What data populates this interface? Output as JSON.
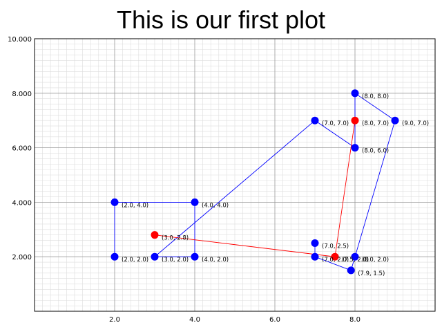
{
  "chart_data": {
    "type": "scatter",
    "title": "This is our first plot",
    "xlabel": "",
    "ylabel": "",
    "xlim": [
      0,
      10
    ],
    "ylim": [
      0,
      10
    ],
    "grid": true,
    "x_ticks": [
      {
        "value": 2,
        "label": "2.0"
      },
      {
        "value": 4,
        "label": "4.0"
      },
      {
        "value": 6,
        "label": "6.0"
      },
      {
        "value": 8,
        "label": "8.0"
      }
    ],
    "y_ticks": [
      {
        "value": 2,
        "label": "2.000"
      },
      {
        "value": 4,
        "label": "4.000"
      },
      {
        "value": 6,
        "label": "6.000"
      },
      {
        "value": 8,
        "label": "8.000"
      },
      {
        "value": 10,
        "label": "10.000"
      }
    ],
    "series": [
      {
        "color": "#0000ff",
        "points": [
          {
            "x": 2,
            "y": 2,
            "label": "(2.0, 2.0)"
          },
          {
            "x": 2,
            "y": 4,
            "label": "(2.0, 4.0)"
          },
          {
            "x": 4,
            "y": 4,
            "label": "(4.0, 4.0)"
          },
          {
            "x": 4,
            "y": 2,
            "label": "(4.0, 2.0)"
          },
          {
            "x": 3,
            "y": 2,
            "label": "(3.0, 2.0)"
          },
          {
            "x": 7,
            "y": 7,
            "label": "(7.0, 7.0)"
          },
          {
            "x": 8,
            "y": 6,
            "label": "(8.0, 6.0)"
          },
          {
            "x": 8,
            "y": 8,
            "label": "(8.0, 8.0)"
          },
          {
            "x": 9,
            "y": 7,
            "label": "(9.0, 7.0)"
          },
          {
            "x": 8,
            "y": 2,
            "label": "(8.0, 2.0)"
          },
          {
            "x": 7.9,
            "y": 1.5,
            "label": "(7.9, 1.5)"
          },
          {
            "x": 7,
            "y": 2,
            "label": "(7.0, 2.0)"
          },
          {
            "x": 7,
            "y": 2.5,
            "label": "(7.0, 2.5)"
          }
        ]
      },
      {
        "color": "#ff0000",
        "points": [
          {
            "x": 3,
            "y": 2.8,
            "label": "(3.0, 2.8)"
          },
          {
            "x": 7.5,
            "y": 2,
            "label": "(7.5, 2.0)"
          },
          {
            "x": 8,
            "y": 7,
            "label": "(8.0, 7.0)"
          }
        ]
      }
    ]
  }
}
